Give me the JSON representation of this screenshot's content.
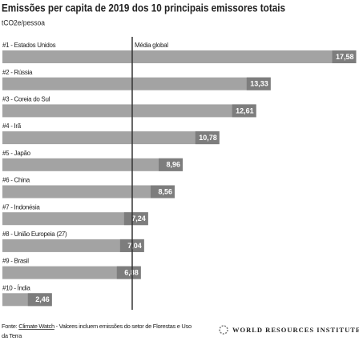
{
  "chart_data": {
    "type": "hbar",
    "title": "Emissões per capita de 2019 dos 10 principais emissores totais",
    "subtitle": "tCO2e/pessoa",
    "categories": [
      "#1 - Estados Unidos",
      "#2 - Rússia",
      "#3 - Coreia do Sul",
      "#4 - Irã",
      "#5 - Japão",
      "#6 - China",
      "#7 - Indonésia",
      "#8 - União Europeia (27)",
      "#9 - Brasil",
      "#10 - Índia"
    ],
    "values": [
      17.58,
      13.33,
      12.61,
      10.78,
      8.96,
      8.56,
      7.24,
      7.04,
      6.88,
      2.46
    ],
    "value_labels": [
      "17,58",
      "13,33",
      "12,61",
      "10,78",
      "8,96",
      "8,56",
      "7,24",
      "7,04",
      "6,88",
      "2,46"
    ],
    "color": "#a3a3a3",
    "label_color": "#7d7d7d",
    "xlim": [
      0,
      17.6
    ],
    "reference_line": {
      "label": "Média global",
      "value": 6.45
    },
    "source": {
      "prefix": "Fonte:",
      "link": "Climate Watch",
      "text": "- Valores incluem emissões do setor de Florestas e Uso",
      "text_cont": "da Terra"
    },
    "logo": "WORLD RESOURCES INSTITUTE"
  }
}
